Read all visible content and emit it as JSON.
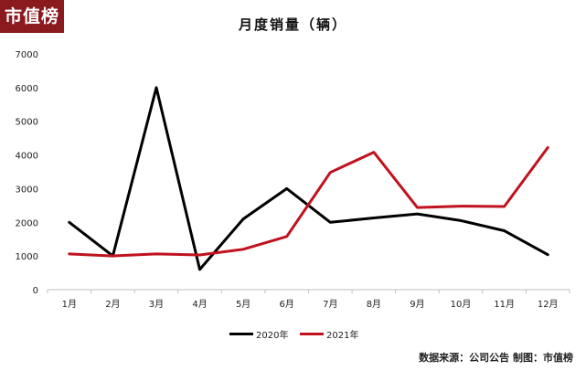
{
  "logo": {
    "text": "市值榜"
  },
  "colors": {
    "logo_bg": "#8b1a1f",
    "series_2020": "#000000",
    "series_2021": "#c0121f",
    "axis": "#bfbfbf"
  },
  "chart_data": {
    "type": "line",
    "title": "月度销量（辆）",
    "xlabel": "",
    "ylabel": "",
    "categories": [
      "1月",
      "2月",
      "3月",
      "4月",
      "5月",
      "6月",
      "7月",
      "8月",
      "9月",
      "10月",
      "11月",
      "12月"
    ],
    "series": [
      {
        "name": "2020年",
        "color": "#000000",
        "values": [
          2000,
          1000,
          6000,
          600,
          2100,
          3000,
          2000,
          2130,
          2250,
          2050,
          1750,
          1040
        ]
      },
      {
        "name": "2021年",
        "color": "#c0121f",
        "values": [
          1060,
          1000,
          1060,
          1030,
          1200,
          1580,
          3480,
          4080,
          2440,
          2480,
          2470,
          4220
        ]
      }
    ],
    "ylim": [
      0,
      7000
    ],
    "yticks": [
      0,
      1000,
      2000,
      3000,
      4000,
      5000,
      6000,
      7000
    ],
    "grid": false,
    "legend": "bottom"
  },
  "footer": {
    "text": "数据来源：公司公告  制图：市值榜"
  }
}
